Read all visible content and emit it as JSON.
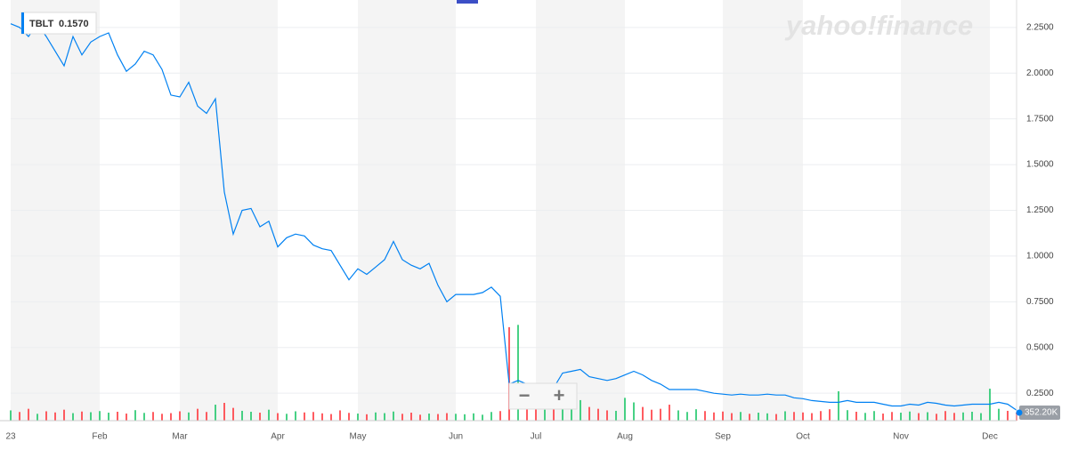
{
  "chart_data": {
    "type": "line",
    "watermark": "yahoo!finance",
    "zoom_out": "−",
    "zoom_in": "+",
    "categories": [
      "23",
      null,
      null,
      null,
      null,
      null,
      null,
      null,
      null,
      null,
      "Feb",
      null,
      null,
      null,
      null,
      null,
      null,
      null,
      null,
      "Mar",
      null,
      null,
      null,
      null,
      null,
      null,
      null,
      null,
      null,
      null,
      "Apr",
      null,
      null,
      null,
      null,
      null,
      null,
      null,
      null,
      "May",
      null,
      null,
      null,
      null,
      null,
      null,
      null,
      null,
      null,
      null,
      "Jun",
      null,
      null,
      null,
      null,
      null,
      null,
      null,
      null,
      "Jul",
      null,
      null,
      null,
      null,
      null,
      null,
      null,
      null,
      null,
      "Aug",
      null,
      null,
      null,
      null,
      null,
      null,
      null,
      null,
      null,
      null,
      "Sep",
      null,
      null,
      null,
      null,
      null,
      null,
      null,
      null,
      "Oct",
      null,
      null,
      null,
      null,
      null,
      null,
      null,
      null,
      null,
      null,
      "Nov",
      null,
      null,
      null,
      null,
      null,
      null,
      null,
      null,
      null,
      "Dec",
      null,
      null,
      null
    ],
    "series": [
      {
        "name": "TBLT",
        "color": "#0081f2",
        "last_value_label": "0.1570",
        "values": [
          2.27,
          2.25,
          2.2,
          2.27,
          2.2,
          2.12,
          2.04,
          2.2,
          2.1,
          2.17,
          2.2,
          2.22,
          2.1,
          2.01,
          2.05,
          2.12,
          2.1,
          2.02,
          1.88,
          1.87,
          1.95,
          1.82,
          1.78,
          1.86,
          1.35,
          1.12,
          1.25,
          1.26,
          1.16,
          1.19,
          1.05,
          1.1,
          1.12,
          1.11,
          1.06,
          1.04,
          1.03,
          0.95,
          0.87,
          0.93,
          0.9,
          0.94,
          0.98,
          1.08,
          0.98,
          0.95,
          0.93,
          0.96,
          0.84,
          0.75,
          0.79,
          0.79,
          0.79,
          0.8,
          0.83,
          0.78,
          0.3,
          0.32,
          0.3,
          0.28,
          0.3,
          0.28,
          0.36,
          0.37,
          0.38,
          0.34,
          0.33,
          0.32,
          0.33,
          0.35,
          0.37,
          0.35,
          0.32,
          0.3,
          0.27,
          0.27,
          0.27,
          0.27,
          0.26,
          0.25,
          0.245,
          0.24,
          0.245,
          0.24,
          0.24,
          0.245,
          0.24,
          0.24,
          0.225,
          0.22,
          0.21,
          0.205,
          0.2,
          0.2,
          0.21,
          0.2,
          0.2,
          0.2,
          0.19,
          0.18,
          0.18,
          0.19,
          0.185,
          0.2,
          0.195,
          0.185,
          0.18,
          0.185,
          0.19,
          0.19,
          0.19,
          0.2,
          0.19,
          0.157
        ]
      },
      {
        "axis": "y2",
        "up_color": "#1ac567",
        "down_color": "#ff333a",
        "last_value_label": "352.20K",
        "values": [
          450,
          380,
          520,
          300,
          410,
          360,
          480,
          330,
          400,
          370,
          420,
          350,
          390,
          310,
          460,
          340,
          380,
          300,
          330,
          410,
          360,
          520,
          380,
          700,
          780,
          560,
          430,
          390,
          350,
          480,
          330,
          300,
          410,
          360,
          380,
          320,
          290,
          450,
          340,
          310,
          280,
          360,
          330,
          400,
          300,
          350,
          260,
          310,
          290,
          330,
          300,
          280,
          320,
          260,
          380,
          420,
          4100,
          4200,
          1000,
          560,
          480,
          520,
          640,
          1100,
          900,
          600,
          520,
          450,
          430,
          1000,
          800,
          600,
          480,
          520,
          700,
          450,
          380,
          500,
          420,
          360,
          400,
          330,
          380,
          300,
          350,
          320,
          290,
          410,
          380,
          360,
          330,
          420,
          500,
          1290,
          460,
          390,
          340,
          420,
          310,
          380,
          350,
          400,
          330,
          370,
          300,
          420,
          340,
          360,
          390,
          330,
          1400,
          520,
          430,
          352.2
        ]
      }
    ],
    "ylim": [
      0.1,
      2.4
    ],
    "yticks": [
      {
        "value": 0.25,
        "label": "0.2500"
      },
      {
        "value": 0.5,
        "label": "0.5000"
      },
      {
        "value": 0.75,
        "label": "0.7500"
      },
      {
        "value": 1,
        "label": "1.0000"
      },
      {
        "value": 1.25,
        "label": "1.2500"
      },
      {
        "value": 1.5,
        "label": "1.5000"
      },
      {
        "value": 1.75,
        "label": "1.7500"
      },
      {
        "value": 2,
        "label": "2.0000"
      },
      {
        "value": 2.25,
        "label": "2.2500"
      }
    ],
    "y2lim": [
      0,
      7800
    ],
    "grid": true,
    "band_color": "#f4f4f4"
  }
}
